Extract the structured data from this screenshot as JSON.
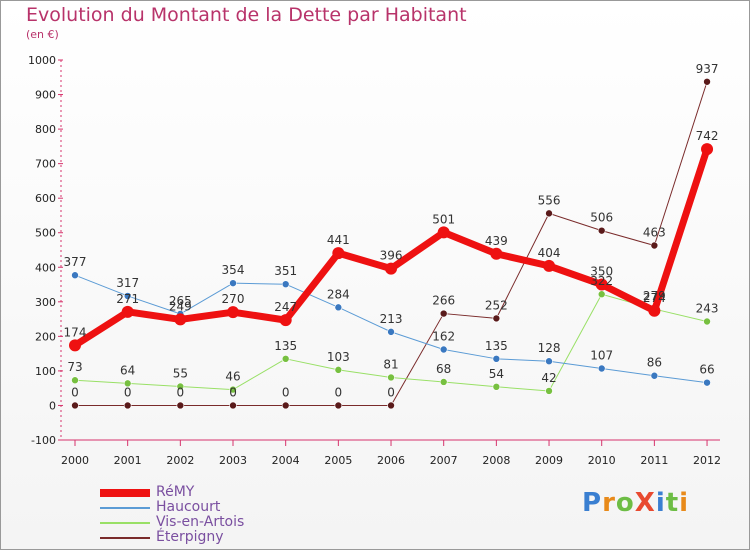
{
  "title": "Evolution du Montant de la Dette par Habitant",
  "subtitle": "(en €)",
  "logo": {
    "text": "ProXiti",
    "letters": [
      "P",
      "r",
      "o",
      "X",
      "i",
      "t",
      "i"
    ],
    "colors": [
      "#3a7fd1",
      "#e88a1a",
      "#6dbd45",
      "#e84a30",
      "#3a7fd1",
      "#6dbd45",
      "#e88a1a"
    ]
  },
  "chart_data": {
    "type": "line",
    "title": "Evolution du Montant de la Dette par Habitant",
    "ylabel": "(en €)",
    "x": [
      "2000",
      "2001",
      "2002",
      "2003",
      "2004",
      "2005",
      "2006",
      "2007",
      "2008",
      "2009",
      "2010",
      "2011",
      "2012"
    ],
    "ylim": [
      -100,
      1000
    ],
    "yticks": [
      -100,
      0,
      100,
      200,
      300,
      400,
      500,
      600,
      700,
      800,
      900,
      1000
    ],
    "grid": false,
    "legend": "bottom-left",
    "series": [
      {
        "name": "RéMY",
        "color": "#ee1111",
        "values": [
          174,
          271,
          249,
          270,
          247,
          441,
          396,
          501,
          439,
          404,
          350,
          274,
          742
        ],
        "labels": [
          "174",
          "271",
          "249",
          "270",
          "247",
          "441",
          "396",
          "501",
          "439",
          "404",
          "350",
          "274",
          "742"
        ]
      },
      {
        "name": "Haucourt",
        "color": "#5b9bd5",
        "values": [
          377,
          317,
          265,
          354,
          351,
          284,
          213,
          162,
          135,
          128,
          107,
          86,
          66
        ],
        "labels": [
          "377",
          "317",
          "265",
          "354",
          "351",
          "284",
          "213",
          "162",
          "135",
          "128",
          "107",
          "86",
          "66"
        ]
      },
      {
        "name": "Vis-en-Artois",
        "color": "#99e066",
        "values": [
          73,
          64,
          55,
          46,
          135,
          103,
          81,
          68,
          54,
          42,
          322,
          279,
          243
        ],
        "labels": [
          "73",
          "64",
          "55",
          "46",
          "135",
          "103",
          "81",
          "68",
          "54",
          "42",
          "322",
          "279",
          "243"
        ]
      },
      {
        "name": "Éterpigny",
        "color": "#7a2b2b",
        "values": [
          0,
          0,
          0,
          0,
          0,
          0,
          0,
          266,
          252,
          556,
          506,
          463,
          937
        ],
        "labels": [
          "0",
          "0",
          "0",
          "0",
          "0",
          "0",
          "0",
          "266",
          "252",
          "556",
          "506",
          "463",
          "937"
        ]
      }
    ]
  }
}
